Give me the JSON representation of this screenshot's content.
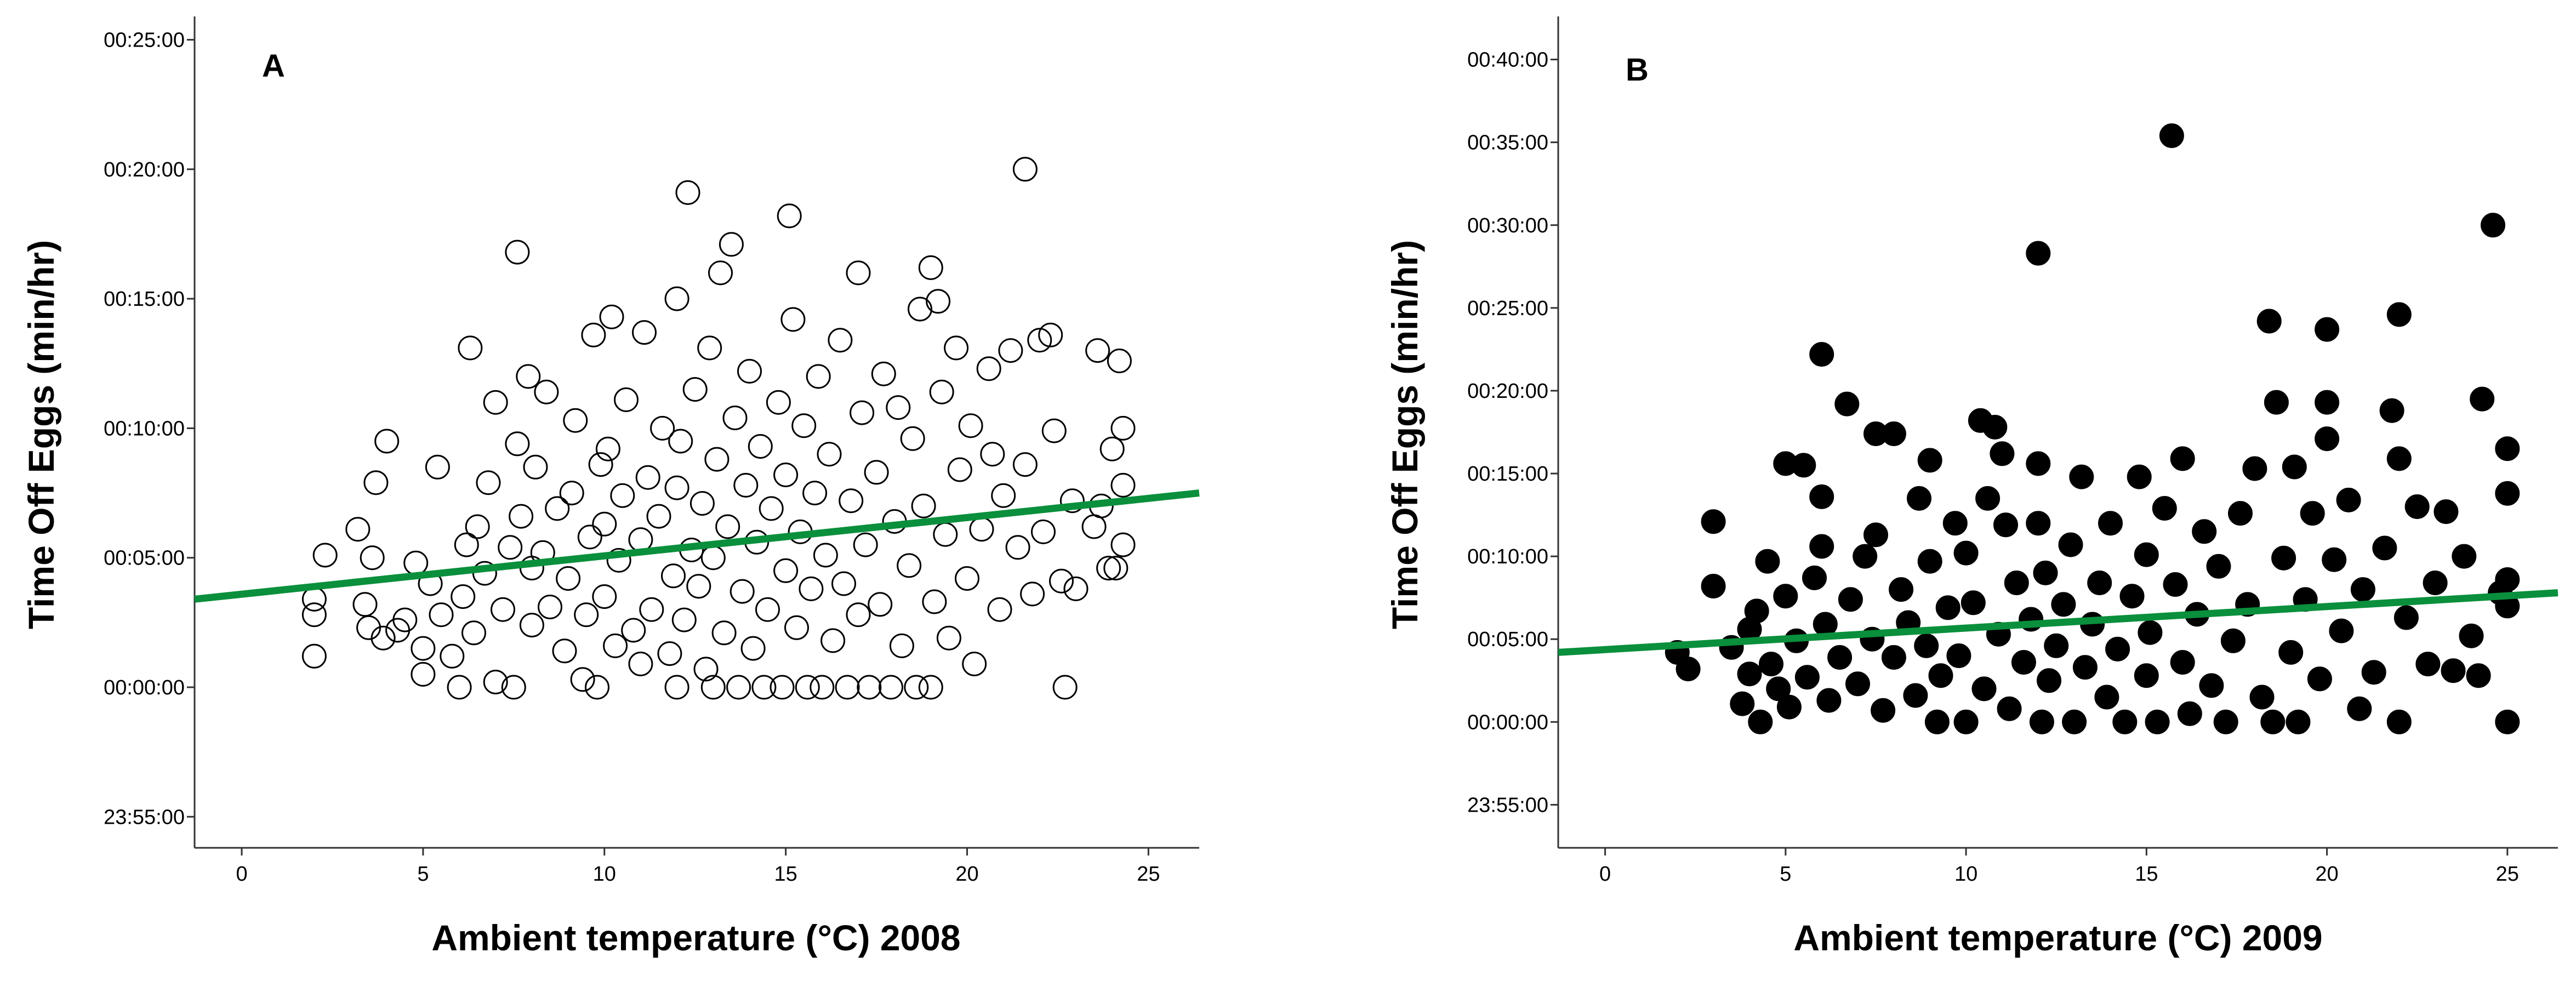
{
  "chart_data": [
    {
      "type": "scatter",
      "panel_label": "A",
      "xlabel": "Ambient temperature (°C) 2008",
      "ylabel": "Time Off Eggs (min/hr)",
      "xlim": [
        -1.3,
        26.4
      ],
      "ylim": [
        -6.2,
        25.9
      ],
      "x_ticks": [
        0,
        5,
        10,
        15,
        20,
        25
      ],
      "x_tick_labels": [
        "0",
        "5",
        "10",
        "15",
        "20",
        "25"
      ],
      "y_ticks": [
        -5,
        0,
        5,
        10,
        15,
        20,
        25
      ],
      "y_tick_labels": [
        "23:55:00",
        "00:00:00",
        "00:05:00",
        "00:10:00",
        "00:15:00",
        "00:20:00",
        "00:25:00"
      ],
      "marker": "open-circle",
      "grid": false,
      "fit_line": {
        "color": "#0a8f3c",
        "x": [
          -1.3,
          26.4
        ],
        "y": [
          3.4,
          7.5
        ]
      },
      "points": [
        [
          2.0,
          1.2
        ],
        [
          2.0,
          2.8
        ],
        [
          2.0,
          3.4
        ],
        [
          2.3,
          5.1
        ],
        [
          3.2,
          6.1
        ],
        [
          3.4,
          3.2
        ],
        [
          3.5,
          2.3
        ],
        [
          3.6,
          5.0
        ],
        [
          3.7,
          7.9
        ],
        [
          3.9,
          1.9
        ],
        [
          4.0,
          9.5
        ],
        [
          4.3,
          2.2
        ],
        [
          4.5,
          2.6
        ],
        [
          4.8,
          4.8
        ],
        [
          5.0,
          0.5
        ],
        [
          5.0,
          1.5
        ],
        [
          5.2,
          4.0
        ],
        [
          5.4,
          8.5
        ],
        [
          5.5,
          2.8
        ],
        [
          5.8,
          1.2
        ],
        [
          6.0,
          0.0
        ],
        [
          6.1,
          3.5
        ],
        [
          6.2,
          5.5
        ],
        [
          6.3,
          13.1
        ],
        [
          6.4,
          2.1
        ],
        [
          6.5,
          6.2
        ],
        [
          6.7,
          4.4
        ],
        [
          6.8,
          7.9
        ],
        [
          7.0,
          0.2
        ],
        [
          7.0,
          11.0
        ],
        [
          7.2,
          3.0
        ],
        [
          7.4,
          5.4
        ],
        [
          7.5,
          0.0
        ],
        [
          7.6,
          16.8
        ],
        [
          7.6,
          9.4
        ],
        [
          7.7,
          6.6
        ],
        [
          7.9,
          12.0
        ],
        [
          8.0,
          2.4
        ],
        [
          8.0,
          4.6
        ],
        [
          8.1,
          8.5
        ],
        [
          8.3,
          5.2
        ],
        [
          8.4,
          11.4
        ],
        [
          8.5,
          3.1
        ],
        [
          8.7,
          6.9
        ],
        [
          8.9,
          1.4
        ],
        [
          9.0,
          4.2
        ],
        [
          9.1,
          7.5
        ],
        [
          9.2,
          10.3
        ],
        [
          9.4,
          0.3
        ],
        [
          9.5,
          2.8
        ],
        [
          9.6,
          5.8
        ],
        [
          9.7,
          13.6
        ],
        [
          9.8,
          0.0
        ],
        [
          9.9,
          8.6
        ],
        [
          10.0,
          3.5
        ],
        [
          10.0,
          6.3
        ],
        [
          10.1,
          9.2
        ],
        [
          10.2,
          14.3
        ],
        [
          10.3,
          1.6
        ],
        [
          10.4,
          4.9
        ],
        [
          10.5,
          7.4
        ],
        [
          10.6,
          11.1
        ],
        [
          10.8,
          2.2
        ],
        [
          11.0,
          0.9
        ],
        [
          11.0,
          5.7
        ],
        [
          11.1,
          13.7
        ],
        [
          11.2,
          8.1
        ],
        [
          11.3,
          3.0
        ],
        [
          11.5,
          6.6
        ],
        [
          11.6,
          10.0
        ],
        [
          11.8,
          1.3
        ],
        [
          11.9,
          4.3
        ],
        [
          12.0,
          0.0
        ],
        [
          12.0,
          7.7
        ],
        [
          12.0,
          15.0
        ],
        [
          12.1,
          9.5
        ],
        [
          12.2,
          2.6
        ],
        [
          12.3,
          19.1
        ],
        [
          12.4,
          5.3
        ],
        [
          12.5,
          11.5
        ],
        [
          12.6,
          3.9
        ],
        [
          12.7,
          7.1
        ],
        [
          12.8,
          0.7
        ],
        [
          12.9,
          13.1
        ],
        [
          13.0,
          0.0
        ],
        [
          13.0,
          5.0
        ],
        [
          13.1,
          8.8
        ],
        [
          13.2,
          16.0
        ],
        [
          13.3,
          2.1
        ],
        [
          13.4,
          6.2
        ],
        [
          13.5,
          17.1
        ],
        [
          13.6,
          10.4
        ],
        [
          13.7,
          0.0
        ],
        [
          13.8,
          3.7
        ],
        [
          13.9,
          7.8
        ],
        [
          14.0,
          12.2
        ],
        [
          14.1,
          1.5
        ],
        [
          14.2,
          5.6
        ],
        [
          14.3,
          9.3
        ],
        [
          14.4,
          0.0
        ],
        [
          14.5,
          3.0
        ],
        [
          14.6,
          6.9
        ],
        [
          14.8,
          11.0
        ],
        [
          14.9,
          0.0
        ],
        [
          15.0,
          4.5
        ],
        [
          15.0,
          8.2
        ],
        [
          15.1,
          18.2
        ],
        [
          15.2,
          14.2
        ],
        [
          15.3,
          2.3
        ],
        [
          15.4,
          6.0
        ],
        [
          15.5,
          10.1
        ],
        [
          15.6,
          0.0
        ],
        [
          15.7,
          3.8
        ],
        [
          15.8,
          7.5
        ],
        [
          15.9,
          12.0
        ],
        [
          16.0,
          0.0
        ],
        [
          16.1,
          5.1
        ],
        [
          16.2,
          9.0
        ],
        [
          16.3,
          1.8
        ],
        [
          16.5,
          13.4
        ],
        [
          16.6,
          4.0
        ],
        [
          16.7,
          0.0
        ],
        [
          16.8,
          7.2
        ],
        [
          17.0,
          16.0
        ],
        [
          17.0,
          2.8
        ],
        [
          17.1,
          10.6
        ],
        [
          17.2,
          5.5
        ],
        [
          17.3,
          0.0
        ],
        [
          17.5,
          8.3
        ],
        [
          17.6,
          3.2
        ],
        [
          17.7,
          12.1
        ],
        [
          17.9,
          0.0
        ],
        [
          18.0,
          6.4
        ],
        [
          18.1,
          10.8
        ],
        [
          18.2,
          1.6
        ],
        [
          18.4,
          4.7
        ],
        [
          18.5,
          9.6
        ],
        [
          18.6,
          0.0
        ],
        [
          18.7,
          14.6
        ],
        [
          18.8,
          7.0
        ],
        [
          19.0,
          16.2
        ],
        [
          19.0,
          0.0
        ],
        [
          19.1,
          3.3
        ],
        [
          19.2,
          14.9
        ],
        [
          19.3,
          11.4
        ],
        [
          19.4,
          5.9
        ],
        [
          19.5,
          1.9
        ],
        [
          19.7,
          13.1
        ],
        [
          19.8,
          8.4
        ],
        [
          20.0,
          4.2
        ],
        [
          20.1,
          10.1
        ],
        [
          20.2,
          0.9
        ],
        [
          20.4,
          6.1
        ],
        [
          20.6,
          12.3
        ],
        [
          20.7,
          9.0
        ],
        [
          20.9,
          3.0
        ],
        [
          21.0,
          7.4
        ],
        [
          21.2,
          13.0
        ],
        [
          21.4,
          5.4
        ],
        [
          21.6,
          20.0
        ],
        [
          21.6,
          8.6
        ],
        [
          21.8,
          3.6
        ],
        [
          22.0,
          13.4
        ],
        [
          22.1,
          6.0
        ],
        [
          22.3,
          13.6
        ],
        [
          22.4,
          9.9
        ],
        [
          22.6,
          4.1
        ],
        [
          22.7,
          0.0
        ],
        [
          22.9,
          7.2
        ],
        [
          23.0,
          3.8
        ],
        [
          23.5,
          6.2
        ],
        [
          23.6,
          13.0
        ],
        [
          23.7,
          7.0
        ],
        [
          23.9,
          4.6
        ],
        [
          24.0,
          9.2
        ],
        [
          24.1,
          4.6
        ],
        [
          24.2,
          12.6
        ],
        [
          24.3,
          5.5
        ],
        [
          24.3,
          7.8
        ],
        [
          24.3,
          10.0
        ]
      ]
    },
    {
      "type": "scatter",
      "panel_label": "B",
      "xlabel": "Ambient temperature (°C) 2009",
      "ylabel": "Time Off Eggs (min/hr)",
      "xlim": [
        -1.3,
        26.4
      ],
      "ylim": [
        -7.6,
        42.6
      ],
      "x_ticks": [
        0,
        5,
        10,
        15,
        20,
        25
      ],
      "x_tick_labels": [
        "0",
        "5",
        "10",
        "15",
        "20",
        "25"
      ],
      "y_ticks": [
        -5,
        0,
        5,
        10,
        15,
        20,
        25,
        30,
        35,
        40
      ],
      "y_tick_labels": [
        "23:55:00",
        "00:00:00",
        "00:05:00",
        "00:10:00",
        "00:15:00",
        "00:20:00",
        "00:25:00",
        "00:30:00",
        "00:35:00",
        "00:40:00"
      ],
      "marker": "filled-circle",
      "grid": false,
      "fit_line": {
        "color": "#0a8f3c",
        "x": [
          -1.3,
          26.4
        ],
        "y": [
          4.2,
          7.8
        ]
      },
      "points": [
        [
          2.0,
          4.2
        ],
        [
          2.3,
          3.2
        ],
        [
          3.0,
          8.2
        ],
        [
          3.0,
          12.1
        ],
        [
          3.5,
          4.5
        ],
        [
          3.8,
          1.1
        ],
        [
          4.0,
          2.9
        ],
        [
          4.0,
          5.6
        ],
        [
          4.2,
          6.7
        ],
        [
          4.3,
          0.0
        ],
        [
          4.5,
          9.7
        ],
        [
          4.6,
          3.5
        ],
        [
          4.8,
          2.0
        ],
        [
          5.0,
          15.6
        ],
        [
          5.0,
          7.6
        ],
        [
          5.1,
          0.9
        ],
        [
          5.3,
          4.9
        ],
        [
          5.5,
          15.5
        ],
        [
          5.6,
          2.7
        ],
        [
          5.8,
          8.7
        ],
        [
          6.0,
          22.2
        ],
        [
          6.0,
          13.6
        ],
        [
          6.0,
          10.6
        ],
        [
          6.1,
          5.9
        ],
        [
          6.2,
          1.3
        ],
        [
          6.5,
          3.9
        ],
        [
          6.7,
          19.2
        ],
        [
          6.8,
          7.4
        ],
        [
          7.0,
          2.3
        ],
        [
          7.2,
          10.0
        ],
        [
          7.4,
          5.0
        ],
        [
          7.5,
          17.4
        ],
        [
          7.5,
          11.3
        ],
        [
          7.7,
          0.7
        ],
        [
          8.0,
          17.4
        ],
        [
          8.0,
          3.9
        ],
        [
          8.2,
          8.0
        ],
        [
          8.4,
          6.0
        ],
        [
          8.6,
          1.6
        ],
        [
          8.7,
          13.5
        ],
        [
          8.9,
          4.6
        ],
        [
          9.0,
          15.8
        ],
        [
          9.0,
          9.7
        ],
        [
          9.2,
          0.0
        ],
        [
          9.3,
          2.8
        ],
        [
          9.5,
          6.9
        ],
        [
          9.7,
          12.0
        ],
        [
          9.8,
          4.0
        ],
        [
          10.0,
          0.0
        ],
        [
          10.0,
          10.2
        ],
        [
          10.2,
          7.2
        ],
        [
          10.4,
          18.2
        ],
        [
          10.5,
          2.0
        ],
        [
          10.6,
          13.5
        ],
        [
          10.8,
          17.8
        ],
        [
          10.9,
          5.3
        ],
        [
          11.0,
          16.2
        ],
        [
          11.1,
          11.9
        ],
        [
          11.2,
          0.8
        ],
        [
          11.4,
          8.4
        ],
        [
          11.6,
          3.6
        ],
        [
          11.8,
          6.2
        ],
        [
          12.0,
          28.3
        ],
        [
          12.0,
          15.6
        ],
        [
          12.0,
          12.0
        ],
        [
          12.1,
          0.0
        ],
        [
          12.2,
          9.0
        ],
        [
          12.3,
          2.5
        ],
        [
          12.5,
          4.6
        ],
        [
          12.7,
          7.1
        ],
        [
          12.9,
          10.7
        ],
        [
          13.0,
          0.0
        ],
        [
          13.2,
          14.8
        ],
        [
          13.3,
          3.3
        ],
        [
          13.5,
          5.9
        ],
        [
          13.7,
          8.4
        ],
        [
          13.9,
          1.5
        ],
        [
          14.0,
          12.0
        ],
        [
          14.2,
          4.4
        ],
        [
          14.4,
          0.0
        ],
        [
          14.6,
          7.6
        ],
        [
          14.8,
          14.8
        ],
        [
          15.0,
          2.8
        ],
        [
          15.0,
          10.1
        ],
        [
          15.1,
          5.4
        ],
        [
          15.3,
          0.0
        ],
        [
          15.5,
          12.9
        ],
        [
          15.7,
          35.4
        ],
        [
          15.8,
          8.3
        ],
        [
          16.0,
          3.6
        ],
        [
          16.0,
          15.9
        ],
        [
          16.2,
          0.5
        ],
        [
          16.4,
          6.5
        ],
        [
          16.6,
          11.5
        ],
        [
          16.8,
          2.2
        ],
        [
          17.0,
          9.4
        ],
        [
          17.2,
          0.0
        ],
        [
          17.4,
          4.9
        ],
        [
          17.6,
          12.6
        ],
        [
          17.8,
          7.1
        ],
        [
          18.0,
          15.3
        ],
        [
          18.2,
          1.5
        ],
        [
          18.4,
          24.2
        ],
        [
          18.5,
          0.0
        ],
        [
          18.6,
          19.3
        ],
        [
          18.8,
          9.9
        ],
        [
          19.0,
          4.2
        ],
        [
          19.1,
          15.4
        ],
        [
          19.2,
          0.0
        ],
        [
          19.4,
          7.4
        ],
        [
          19.6,
          12.6
        ],
        [
          19.8,
          2.6
        ],
        [
          20.0,
          23.7
        ],
        [
          20.0,
          19.3
        ],
        [
          20.0,
          17.1
        ],
        [
          20.2,
          9.8
        ],
        [
          20.4,
          5.5
        ],
        [
          20.6,
          13.4
        ],
        [
          20.9,
          0.8
        ],
        [
          21.0,
          8.0
        ],
        [
          21.3,
          3.0
        ],
        [
          21.6,
          10.5
        ],
        [
          21.8,
          18.8
        ],
        [
          22.0,
          24.6
        ],
        [
          22.0,
          15.9
        ],
        [
          22.0,
          0.0
        ],
        [
          22.2,
          6.3
        ],
        [
          22.5,
          13.0
        ],
        [
          22.8,
          3.5
        ],
        [
          23.0,
          8.4
        ],
        [
          23.3,
          12.7
        ],
        [
          23.5,
          3.1
        ],
        [
          23.8,
          10.0
        ],
        [
          24.0,
          5.2
        ],
        [
          24.2,
          2.8
        ],
        [
          24.3,
          19.5
        ],
        [
          24.6,
          30.0
        ],
        [
          24.8,
          7.8
        ],
        [
          25.0,
          16.5
        ],
        [
          25.0,
          13.8
        ],
        [
          25.0,
          8.6
        ],
        [
          25.0,
          7.0
        ],
        [
          25.0,
          0.0
        ]
      ]
    }
  ]
}
